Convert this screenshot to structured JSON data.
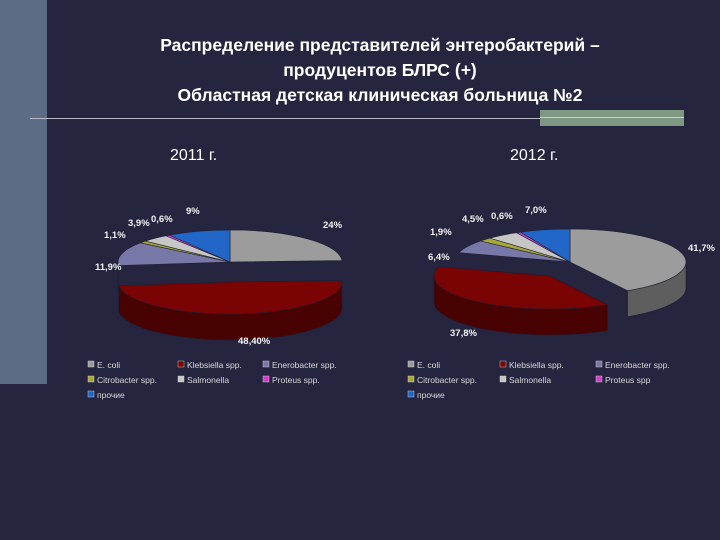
{
  "title": {
    "line1": "Распределение представителей энтеробактерий –",
    "line2": "продуцентов БЛРС (+)",
    "line3": "Областная детская клиническая больница №2"
  },
  "colors": {
    "E. coli": "#9c9c9c",
    "Klebsiella spp.": "#7a0404",
    "Enerobacter spp.": "#7878a8",
    "Citrobacter spp.": "#a8a838",
    "Salmonella": "#c6c6c6",
    "Proteus spp.": "#d040d0",
    "прочие": "#2266c8"
  },
  "chart_data": [
    {
      "type": "pie",
      "title": "2011 г.",
      "categories": [
        "E. coli",
        "Klebsiella spp.",
        "Enerobacter spp.",
        "Citrobacter spp.",
        "Salmonella",
        "Proteus spp.",
        "прочие"
      ],
      "values": [
        24,
        48.4,
        11.9,
        1.1,
        3.9,
        0.6,
        9
      ],
      "labels": [
        "24%",
        "48,40%",
        "11,9%",
        "1,1%",
        "3,9%",
        "0,6%",
        "9%"
      ],
      "legend": [
        "E. coli",
        "Klebsiella spp.",
        "Enerobacter spp.",
        "Citrobacter spp.",
        "Salmonella",
        "Proteus spp.",
        "прочие"
      ]
    },
    {
      "type": "pie",
      "title": "2012 г.",
      "categories": [
        "E. coli",
        "Klebsiella spp.",
        "Enerobacter spp.",
        "Citrobacter spp.",
        "Salmonella",
        "Proteus spp.",
        "прочие"
      ],
      "values": [
        41.7,
        37.8,
        6.4,
        1.9,
        4.5,
        0.6,
        7.0
      ],
      "labels": [
        "41,7%",
        "37,8%",
        "6,4%",
        "1,9%",
        "4,5%",
        "0,6%",
        "7,0%"
      ],
      "legend": [
        "E. coli",
        "Klebsiella spp.",
        "Enerobacter spp.",
        "Citrobacter spp.",
        "Salmonella",
        "Proteus spp",
        "прочие"
      ]
    }
  ]
}
